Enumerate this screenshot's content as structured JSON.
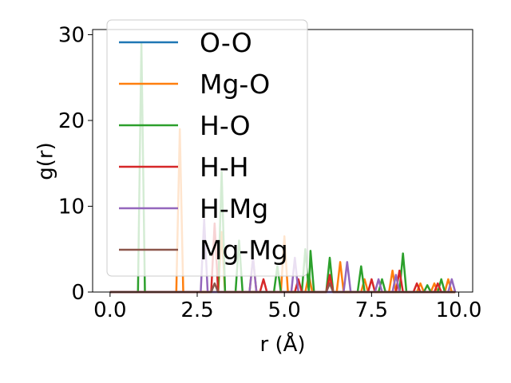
{
  "chart_data": {
    "type": "line",
    "xlabel": "r (Å)",
    "ylabel": "g(r)",
    "xlim": [
      -0.5,
      10.4
    ],
    "ylim": [
      0,
      30.6
    ],
    "xticks": [
      "0.0",
      "2.5",
      "5.0",
      "7.5",
      "10.0"
    ],
    "yticks": [
      "0",
      "10",
      "20",
      "30"
    ],
    "xtick_values": [
      0,
      2.5,
      5,
      7.5,
      10
    ],
    "ytick_values": [
      0,
      10,
      20,
      30
    ],
    "grid": false,
    "legend_position": "upper-left",
    "series": [
      {
        "name": "O-O",
        "color": "#1f77b4",
        "points": [
          [
            0,
            0
          ],
          [
            9.9,
            0
          ]
        ]
      },
      {
        "name": "Mg-O",
        "color": "#ff7f0e",
        "points": [
          [
            0,
            0
          ],
          [
            1.9,
            0
          ],
          [
            2.0,
            19
          ],
          [
            2.1,
            0
          ],
          [
            3.1,
            0
          ],
          [
            3.2,
            7
          ],
          [
            3.3,
            0
          ],
          [
            4.0,
            0
          ],
          [
            4.1,
            4
          ],
          [
            4.2,
            0
          ],
          [
            4.9,
            0
          ],
          [
            5.0,
            6.5
          ],
          [
            5.1,
            0
          ],
          [
            5.6,
            0
          ],
          [
            5.7,
            2
          ],
          [
            5.8,
            0
          ],
          [
            6.2,
            0
          ],
          [
            6.3,
            1.5
          ],
          [
            6.4,
            0
          ],
          [
            6.5,
            0
          ],
          [
            6.6,
            3.5
          ],
          [
            6.7,
            0
          ],
          [
            7.2,
            0
          ],
          [
            7.3,
            1.5
          ],
          [
            7.4,
            0
          ],
          [
            8.0,
            0
          ],
          [
            8.1,
            2.5
          ],
          [
            8.2,
            0
          ],
          [
            8.8,
            0
          ],
          [
            8.9,
            1
          ],
          [
            9.0,
            0
          ],
          [
            9.2,
            0
          ],
          [
            9.3,
            1
          ],
          [
            9.4,
            0
          ],
          [
            9.6,
            0
          ],
          [
            9.7,
            1.5
          ],
          [
            9.8,
            0
          ],
          [
            9.9,
            0
          ]
        ]
      },
      {
        "name": "H-O",
        "color": "#2ca02c",
        "points": [
          [
            0,
            0
          ],
          [
            0.8,
            0
          ],
          [
            0.9,
            29
          ],
          [
            1.0,
            0
          ],
          [
            3.1,
            0
          ],
          [
            3.2,
            14
          ],
          [
            3.3,
            0
          ],
          [
            3.6,
            0
          ],
          [
            3.7,
            6
          ],
          [
            3.8,
            0
          ],
          [
            4.7,
            0
          ],
          [
            4.8,
            3
          ],
          [
            4.9,
            0
          ],
          [
            5.5,
            0
          ],
          [
            5.6,
            5
          ],
          [
            5.7,
            0
          ],
          [
            5.75,
            4.8
          ],
          [
            5.85,
            0
          ],
          [
            6.2,
            0
          ],
          [
            6.3,
            4
          ],
          [
            6.4,
            0
          ],
          [
            7.1,
            0
          ],
          [
            7.2,
            3
          ],
          [
            7.3,
            0
          ],
          [
            7.7,
            0
          ],
          [
            7.8,
            1.5
          ],
          [
            7.9,
            0
          ],
          [
            8.3,
            0
          ],
          [
            8.4,
            4.5
          ],
          [
            8.5,
            0
          ],
          [
            9.0,
            0
          ],
          [
            9.1,
            0.8
          ],
          [
            9.2,
            0
          ],
          [
            9.4,
            0
          ],
          [
            9.5,
            1.5
          ],
          [
            9.6,
            0
          ],
          [
            9.9,
            0
          ]
        ]
      },
      {
        "name": "H-H",
        "color": "#d62728",
        "points": [
          [
            0,
            0
          ],
          [
            2.9,
            0
          ],
          [
            3.0,
            8
          ],
          [
            3.1,
            0
          ],
          [
            4.3,
            0
          ],
          [
            4.4,
            1.5
          ],
          [
            4.5,
            0
          ],
          [
            5.3,
            0
          ],
          [
            5.4,
            1.5
          ],
          [
            5.5,
            0
          ],
          [
            6.2,
            0
          ],
          [
            6.3,
            2
          ],
          [
            6.4,
            0
          ],
          [
            7.4,
            0
          ],
          [
            7.5,
            1.5
          ],
          [
            7.6,
            0
          ],
          [
            8.2,
            0
          ],
          [
            8.3,
            2.5
          ],
          [
            8.4,
            0
          ],
          [
            8.7,
            0
          ],
          [
            8.8,
            1
          ],
          [
            8.9,
            0
          ],
          [
            9.3,
            0
          ],
          [
            9.4,
            1
          ],
          [
            9.5,
            0
          ],
          [
            9.9,
            0
          ]
        ]
      },
      {
        "name": "H-Mg",
        "color": "#9467bd",
        "points": [
          [
            0,
            0
          ],
          [
            2.6,
            0
          ],
          [
            2.7,
            8.5
          ],
          [
            2.8,
            0
          ],
          [
            4.0,
            0
          ],
          [
            4.1,
            4
          ],
          [
            4.2,
            0
          ],
          [
            5.2,
            0
          ],
          [
            5.3,
            4
          ],
          [
            5.4,
            0
          ],
          [
            6.7,
            0
          ],
          [
            6.8,
            3.5
          ],
          [
            6.9,
            0
          ],
          [
            7.6,
            0
          ],
          [
            7.7,
            1.5
          ],
          [
            7.8,
            0
          ],
          [
            8.1,
            0
          ],
          [
            8.2,
            2
          ],
          [
            8.3,
            0
          ],
          [
            9.7,
            0
          ],
          [
            9.8,
            1.5
          ],
          [
            9.9,
            0
          ]
        ]
      },
      {
        "name": "Mg-Mg",
        "color": "#8c564b",
        "points": [
          [
            0,
            0
          ],
          [
            2.9,
            0
          ],
          [
            3.0,
            1
          ],
          [
            3.1,
            0
          ],
          [
            6.2,
            0
          ],
          [
            6.3,
            1
          ],
          [
            6.4,
            0
          ],
          [
            9.9,
            0
          ]
        ]
      }
    ]
  }
}
